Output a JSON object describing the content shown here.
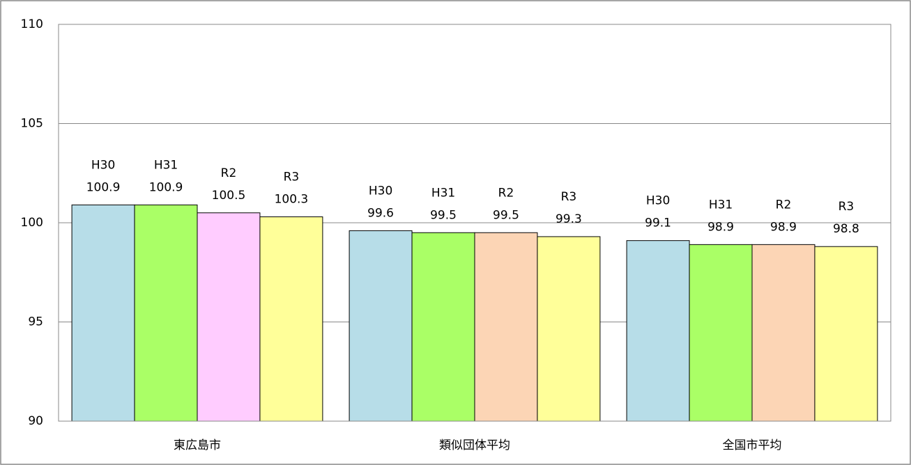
{
  "chart_data": {
    "type": "bar",
    "categories": [
      "東広島市",
      "類似団体平均",
      "全国市平均"
    ],
    "series": [
      {
        "name": "H30",
        "color": "#b7dde8",
        "values": [
          100.9,
          99.6,
          99.1
        ]
      },
      {
        "name": "H31",
        "color": "#aaff66",
        "values": [
          100.9,
          99.5,
          98.9
        ]
      },
      {
        "name": "R2",
        "colors": [
          "#ffccff",
          "#fcd5b5",
          "#fcd5b5"
        ],
        "values": [
          100.5,
          99.5,
          98.9
        ]
      },
      {
        "name": "R3",
        "color": "#ffff99",
        "values": [
          100.3,
          99.3,
          98.8
        ]
      }
    ],
    "ylim": [
      90,
      110
    ],
    "yticks": [
      90,
      95,
      100,
      105,
      110
    ],
    "grid": true
  }
}
